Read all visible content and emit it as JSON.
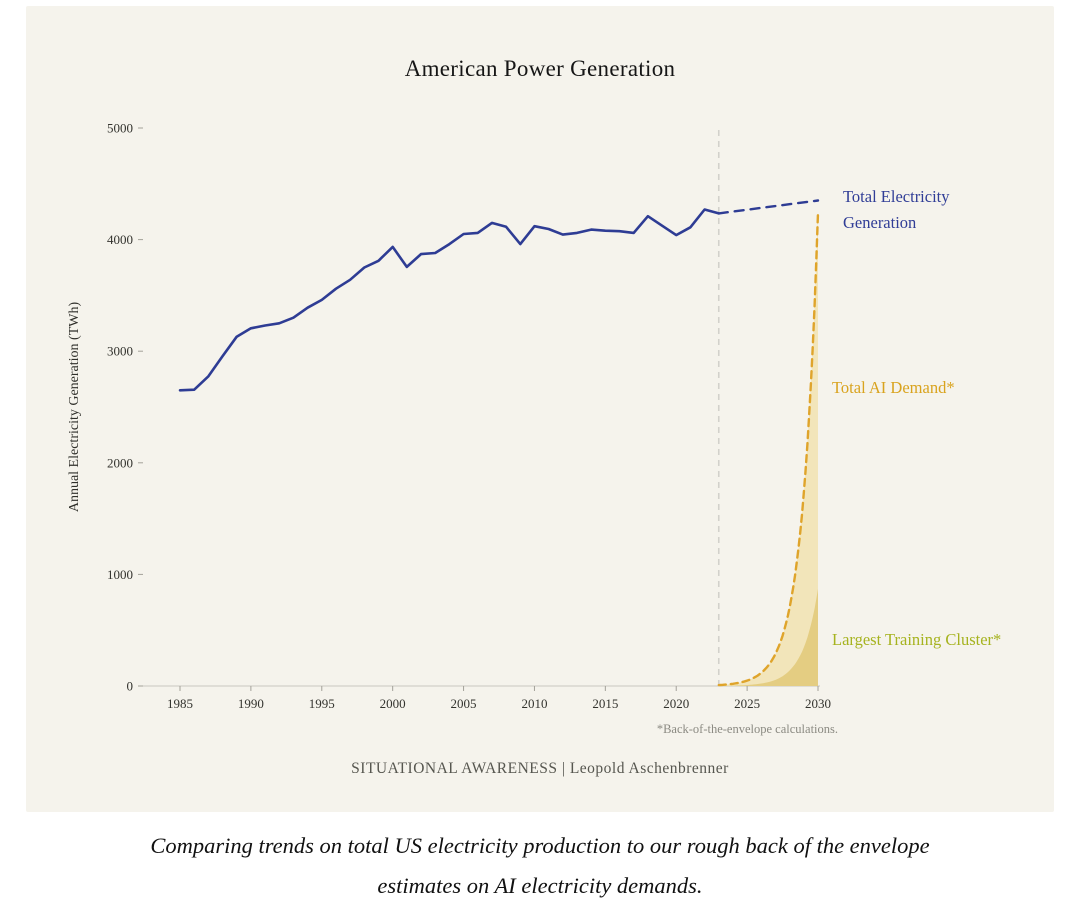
{
  "caption": {
    "line1": "Comparing trends on total US electricity production to our rough back of the envelope",
    "line2": "estimates on AI electricity demands."
  },
  "chart_data": {
    "type": "line",
    "title": "American Power Generation",
    "xlabel": "",
    "ylabel": "Annual Electricity Generation (TWh)",
    "footnote": "*Back-of-the-envelope calculations.",
    "credit": "SITUATIONAL AWARENESS | Leopold Aschenbrenner",
    "xlim": [
      1982,
      2031
    ],
    "ylim": [
      0,
      5000
    ],
    "xticks": [
      1985,
      1990,
      1995,
      2000,
      2005,
      2010,
      2015,
      2020,
      2025,
      2030
    ],
    "yticks": [
      0,
      1000,
      2000,
      3000,
      4000,
      5000
    ],
    "grid": false,
    "legend_position": "right",
    "vline_year": 2023,
    "background": "#f5f3ec",
    "series": [
      {
        "id": "ai-demand",
        "name": "Total AI Demand*",
        "style": "dashed-line-with-area",
        "color": "#dfa42b",
        "fill": "#f2e5ba",
        "dash": "7 5",
        "width": 2.4,
        "log_smooth": true,
        "points": [
          [
            2023,
            8
          ],
          [
            2024,
            20
          ],
          [
            2025,
            48
          ],
          [
            2026,
            118
          ],
          [
            2027,
            288
          ],
          [
            2028,
            706
          ],
          [
            2029,
            1730
          ],
          [
            2030,
            4240
          ]
        ]
      },
      {
        "id": "training-cluster",
        "name": "Largest Training Cluster*",
        "style": "area",
        "color": null,
        "fill": "#e4cd82",
        "dash": "none",
        "width": 0,
        "log_smooth": true,
        "points": [
          [
            2023,
            1.4
          ],
          [
            2024,
            3.5
          ],
          [
            2025,
            9
          ],
          [
            2026,
            22
          ],
          [
            2027,
            55
          ],
          [
            2028,
            140
          ],
          [
            2029,
            345
          ],
          [
            2030,
            870
          ]
        ]
      },
      {
        "id": "generation-historical",
        "name": "Total Electricity Generation (historical)",
        "style": "solid-line",
        "color": "#2e3c94",
        "fill": null,
        "dash": "none",
        "width": 2.6,
        "log_smooth": false,
        "points": [
          [
            1985,
            2650
          ],
          [
            1986,
            2655
          ],
          [
            1987,
            2775
          ],
          [
            1988,
            2955
          ],
          [
            1989,
            3130
          ],
          [
            1990,
            3205
          ],
          [
            1991,
            3230
          ],
          [
            1992,
            3250
          ],
          [
            1993,
            3300
          ],
          [
            1994,
            3390
          ],
          [
            1995,
            3460
          ],
          [
            1996,
            3560
          ],
          [
            1997,
            3640
          ],
          [
            1998,
            3750
          ],
          [
            1999,
            3810
          ],
          [
            2000,
            3935
          ],
          [
            2001,
            3755
          ],
          [
            2002,
            3870
          ],
          [
            2003,
            3880
          ],
          [
            2004,
            3960
          ],
          [
            2005,
            4050
          ],
          [
            2006,
            4060
          ],
          [
            2007,
            4150
          ],
          [
            2008,
            4115
          ],
          [
            2009,
            3960
          ],
          [
            2010,
            4120
          ],
          [
            2011,
            4095
          ],
          [
            2012,
            4045
          ],
          [
            2013,
            4060
          ],
          [
            2014,
            4090
          ],
          [
            2015,
            4080
          ],
          [
            2016,
            4075
          ],
          [
            2017,
            4060
          ],
          [
            2018,
            4210
          ],
          [
            2019,
            4125
          ],
          [
            2020,
            4040
          ],
          [
            2021,
            4110
          ],
          [
            2022,
            4270
          ],
          [
            2023,
            4235
          ]
        ]
      },
      {
        "id": "generation-projected",
        "name": "Total Electricity Generation (projected)",
        "style": "dashed-line",
        "color": "#2e3c94",
        "fill": null,
        "dash": "9 7",
        "width": 2.4,
        "log_smooth": false,
        "points": [
          [
            2023,
            4235
          ],
          [
            2030,
            4350
          ]
        ]
      }
    ],
    "labels": {
      "total_generation": {
        "text": "Total Electricity Generation",
        "color": "#303d96"
      },
      "ai_demand": {
        "text": "Total AI Demand*",
        "color": "#d9a31e"
      },
      "training_cluster": {
        "text": "Largest Training Cluster*",
        "color": "#a6b31f"
      }
    }
  }
}
